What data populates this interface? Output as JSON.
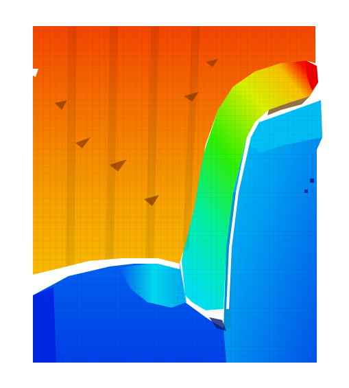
{
  "figure": {
    "kind": "voxel-rendering",
    "colormap": [
      "#0018e0",
      "#0050f0",
      "#00a8f0",
      "#00e8f0",
      "#00f070",
      "#90f000",
      "#f8f000",
      "#f8b800",
      "#f88000",
      "#f04000",
      "#e00000"
    ],
    "background": "#ffffff"
  }
}
